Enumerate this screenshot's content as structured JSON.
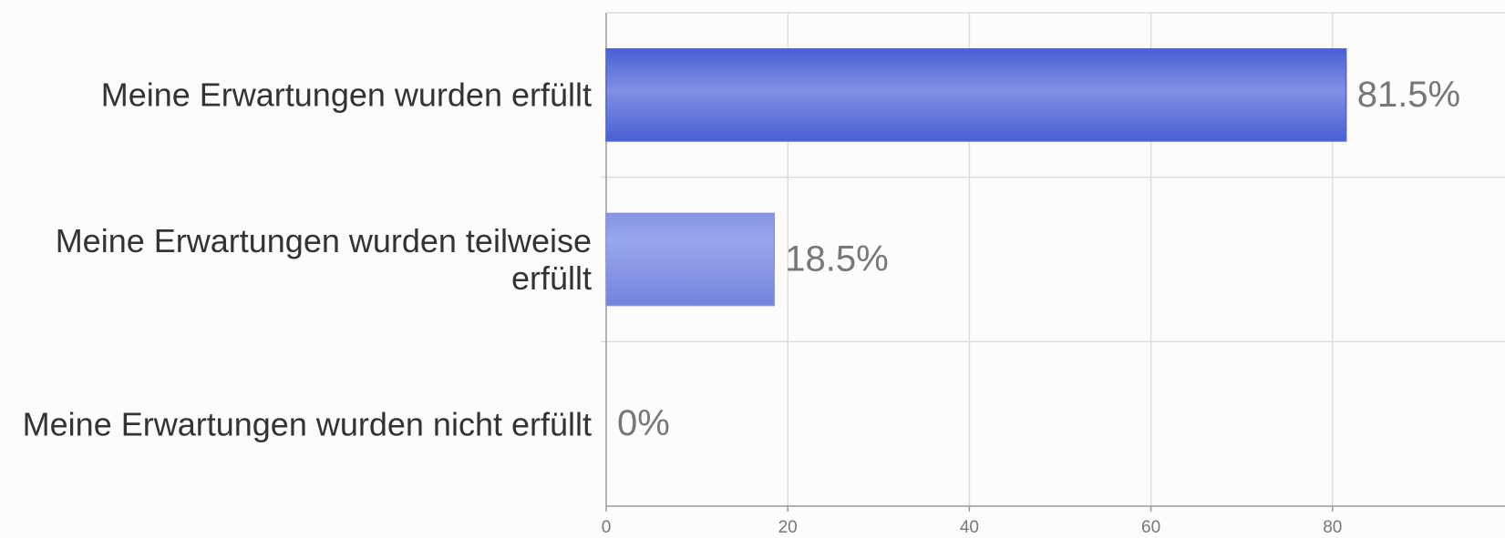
{
  "chart_data": {
    "type": "barh",
    "categories": [
      "Meine Erwartungen wurden erfüllt",
      "Meine Erwartungen wurden teilweise erfüllt",
      "Meine Erwartungen wurden nicht erfüllt"
    ],
    "values": [
      81.5,
      18.5,
      0
    ],
    "value_labels": [
      "81.5%",
      "18.5%",
      "0%"
    ],
    "colors": [
      "#5065d8",
      "#8594e4",
      "#8594e4"
    ],
    "xlim": [
      0,
      99
    ],
    "xticks": [
      0,
      20,
      40,
      60,
      80
    ],
    "grid": true
  }
}
